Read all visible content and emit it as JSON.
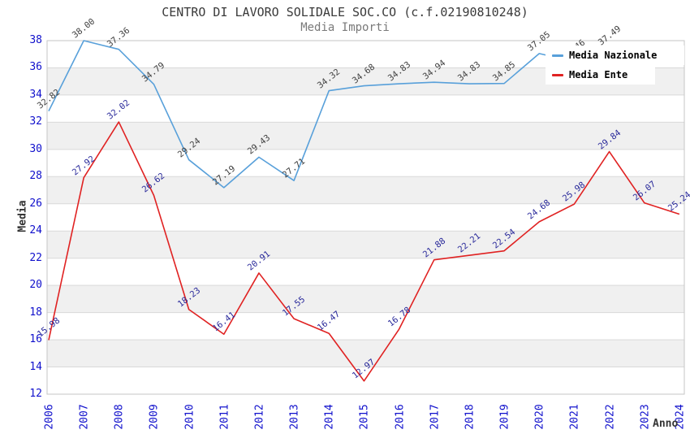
{
  "title": "CENTRO DI LAVORO SOLIDALE SOC.CO (c.f.02190810248)",
  "subtitle": "Media Importi",
  "axes": {
    "y_title": "Media",
    "x_title": "Anno",
    "y_ticks": [
      12,
      14,
      16,
      18,
      20,
      22,
      24,
      26,
      28,
      30,
      32,
      34,
      36,
      38
    ],
    "tick_color": "#1010cc"
  },
  "legend": {
    "position": "top-right",
    "items": [
      {
        "label": "Media Nazionale",
        "color": "#58a0da"
      },
      {
        "label": "Media Ente",
        "color": "#e02222"
      }
    ]
  },
  "chart_data": {
    "type": "line",
    "x": [
      2006,
      2007,
      2008,
      2009,
      2010,
      2011,
      2012,
      2013,
      2014,
      2015,
      2016,
      2017,
      2018,
      2019,
      2020,
      2021,
      2022,
      2023,
      2024
    ],
    "series": [
      {
        "name": "Media Nazionale",
        "color": "#58a0da",
        "label_color": "#3f3f3f",
        "values": [
          32.82,
          38.0,
          37.36,
          34.79,
          29.24,
          27.19,
          29.43,
          27.71,
          34.32,
          34.68,
          34.83,
          34.94,
          34.83,
          34.85,
          37.05,
          36.46,
          37.49,
          null,
          null
        ],
        "occluded_note": "2023 and 2024 values hidden behind legend box; 2021 label partially hidden"
      },
      {
        "name": "Media Ente",
        "color": "#e02222",
        "label_color": "#28289a",
        "values": [
          15.98,
          27.92,
          32.02,
          26.62,
          18.23,
          16.41,
          20.91,
          17.55,
          16.47,
          12.97,
          16.78,
          21.88,
          22.21,
          22.54,
          24.68,
          25.98,
          29.84,
          26.07,
          25.24
        ]
      }
    ],
    "title": "CENTRO DI LAVORO SOLIDALE SOC.CO (c.f.02190810248)",
    "subtitle": "Media Importi",
    "xlabel": "Anno",
    "ylabel": "Media",
    "ylim": [
      12,
      38
    ],
    "ytick_step": 2,
    "grid": "horizontal gridlines with alternating light-gray bands (14-16, 18-20, 22-24, 26-28, 30-32, 34-36 shaded)",
    "legend_position": "top-right",
    "band_color": "#f0f0f0",
    "gridline_color": "#d9d9d9",
    "border_color": "#c6c6c6"
  }
}
